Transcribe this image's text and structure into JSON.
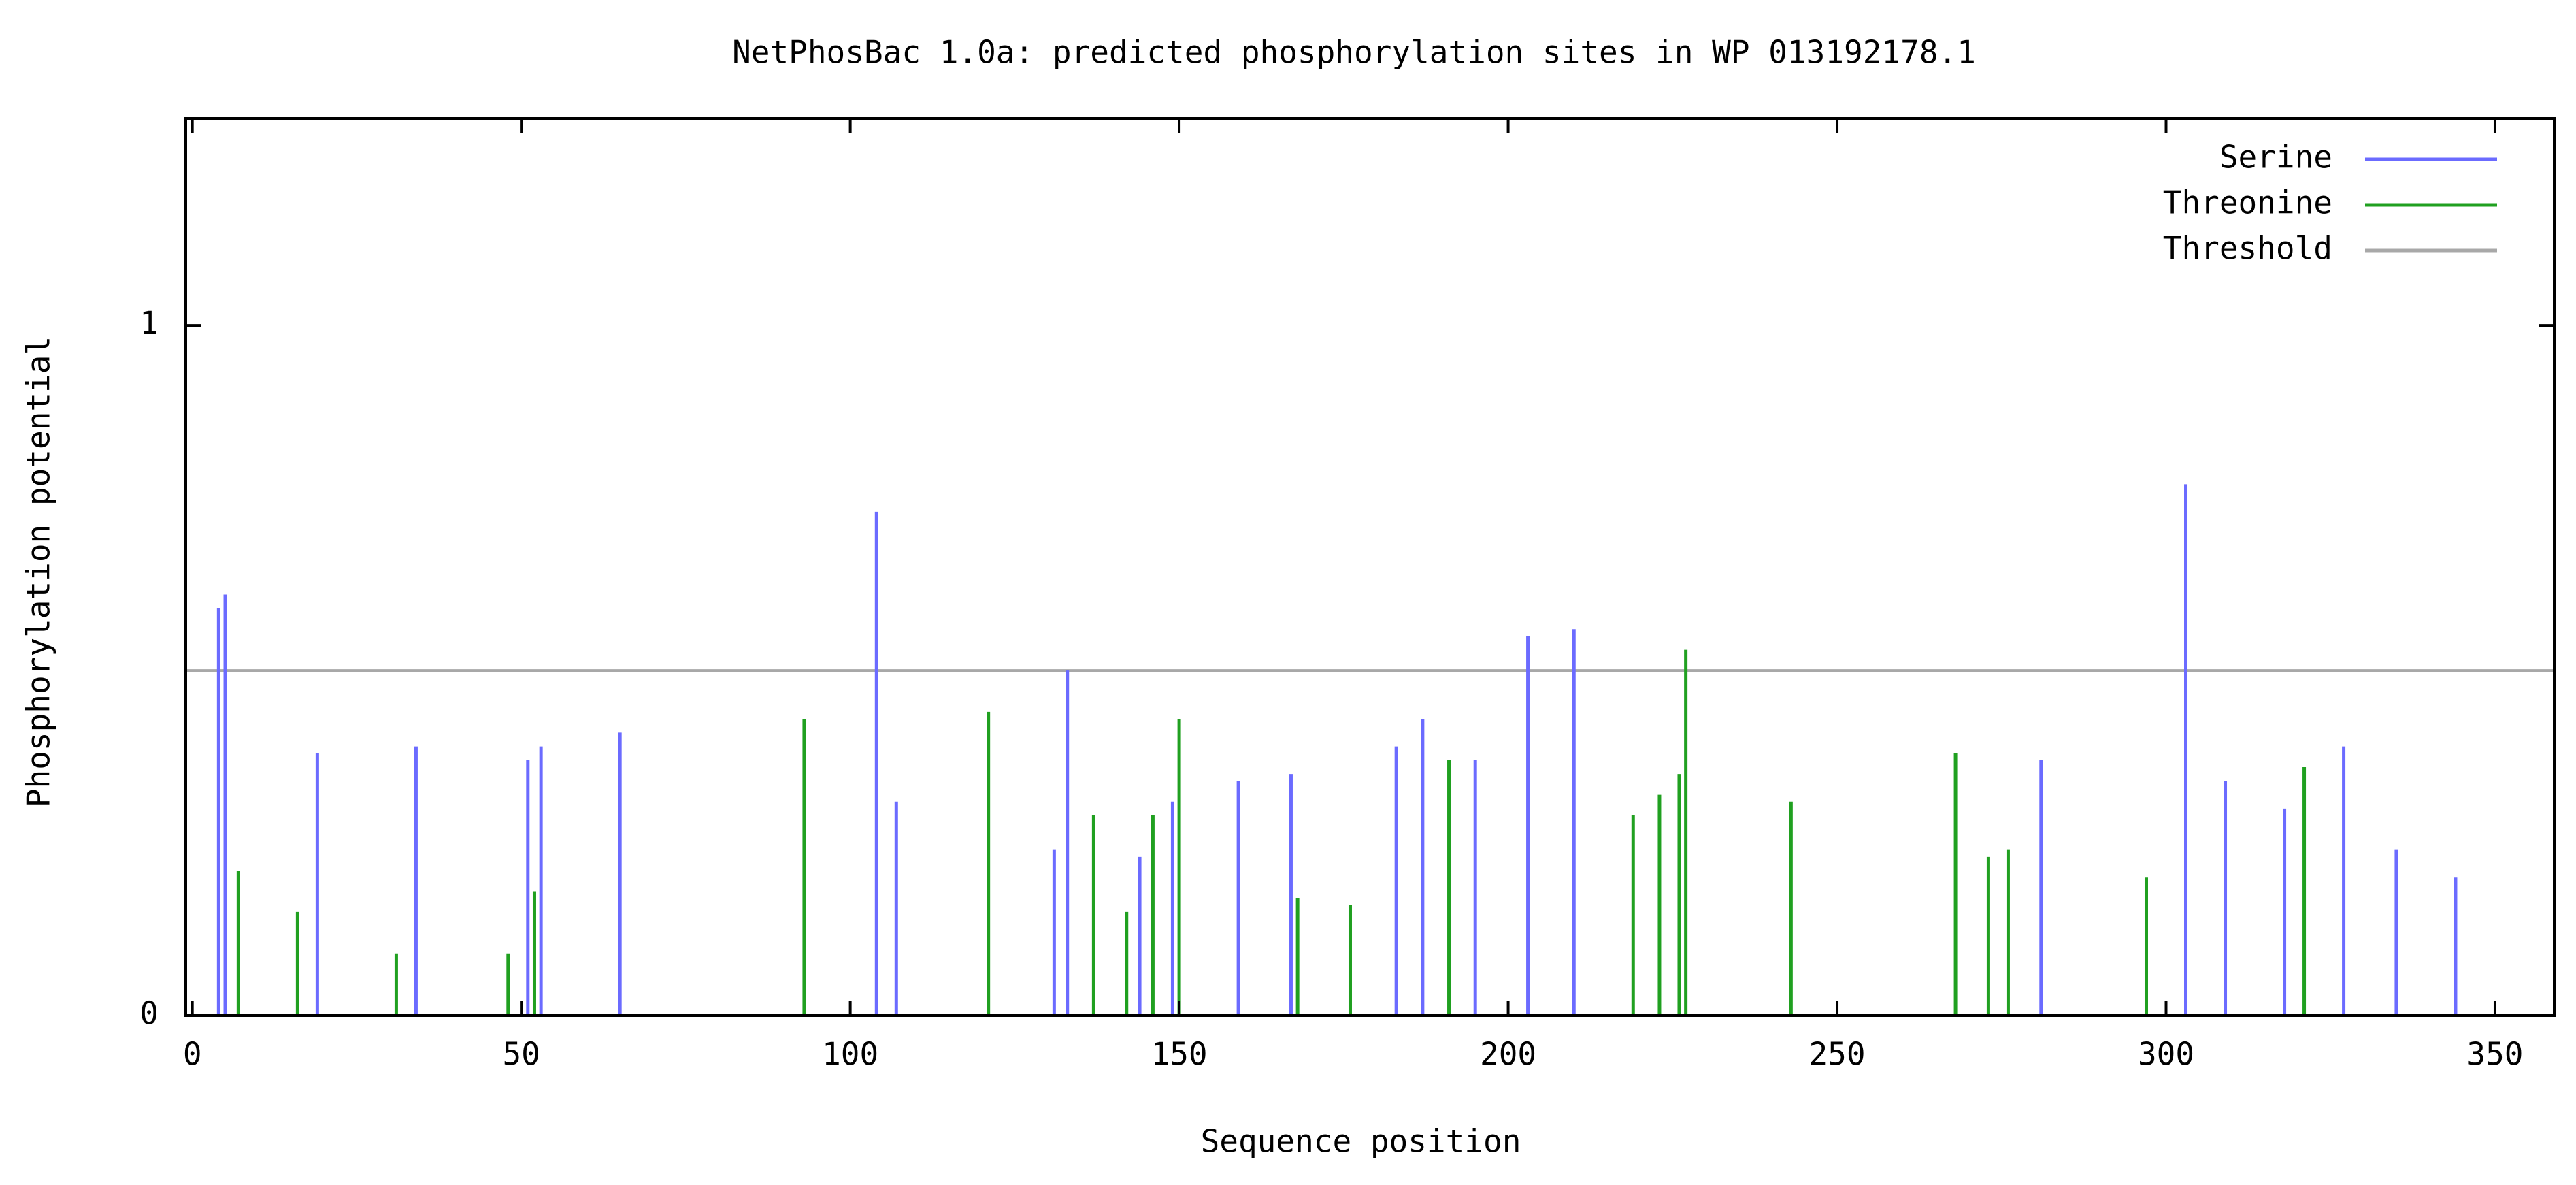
{
  "chart_data": {
    "type": "bar",
    "title": "NetPhosBac 1.0a: predicted phosphorylation sites in WP 013192178.1",
    "x_label": "Sequence position",
    "y_label": "Phosphorylation potential",
    "xlim": [
      -1,
      359
    ],
    "xticks": [
      0,
      50,
      100,
      150,
      200,
      250,
      300,
      350
    ],
    "ylim": [
      0,
      1.3
    ],
    "yticks": [
      0,
      1
    ],
    "legend": "top-right",
    "series": [
      {
        "name": "Serine",
        "color": "#6b6bff",
        "x": [
          4,
          5,
          19,
          34,
          51,
          53,
          65,
          104,
          107,
          131,
          133,
          144,
          149,
          159,
          167,
          183,
          187,
          195,
          203,
          210,
          281,
          303,
          309,
          318,
          327,
          335,
          344
        ],
        "values": [
          0.59,
          0.61,
          0.38,
          0.39,
          0.37,
          0.39,
          0.41,
          0.73,
          0.31,
          0.24,
          0.5,
          0.23,
          0.31,
          0.34,
          0.35,
          0.39,
          0.43,
          0.37,
          0.55,
          0.56,
          0.37,
          0.77,
          0.34,
          0.3,
          0.39,
          0.24,
          0.2
        ]
      },
      {
        "name": "Threonine",
        "color": "#20a020",
        "x": [
          7,
          16,
          31,
          48,
          52,
          93,
          121,
          137,
          142,
          146,
          150,
          168,
          176,
          191,
          219,
          223,
          226,
          227,
          243,
          268,
          273,
          276,
          297,
          321
        ],
        "values": [
          0.21,
          0.15,
          0.09,
          0.09,
          0.18,
          0.43,
          0.44,
          0.29,
          0.15,
          0.29,
          0.43,
          0.17,
          0.16,
          0.37,
          0.29,
          0.32,
          0.35,
          0.53,
          0.31,
          0.38,
          0.23,
          0.24,
          0.2,
          0.36
        ]
      }
    ],
    "threshold": {
      "name": "Threshold",
      "color": "#a8a8a8",
      "value": 0.5
    }
  }
}
